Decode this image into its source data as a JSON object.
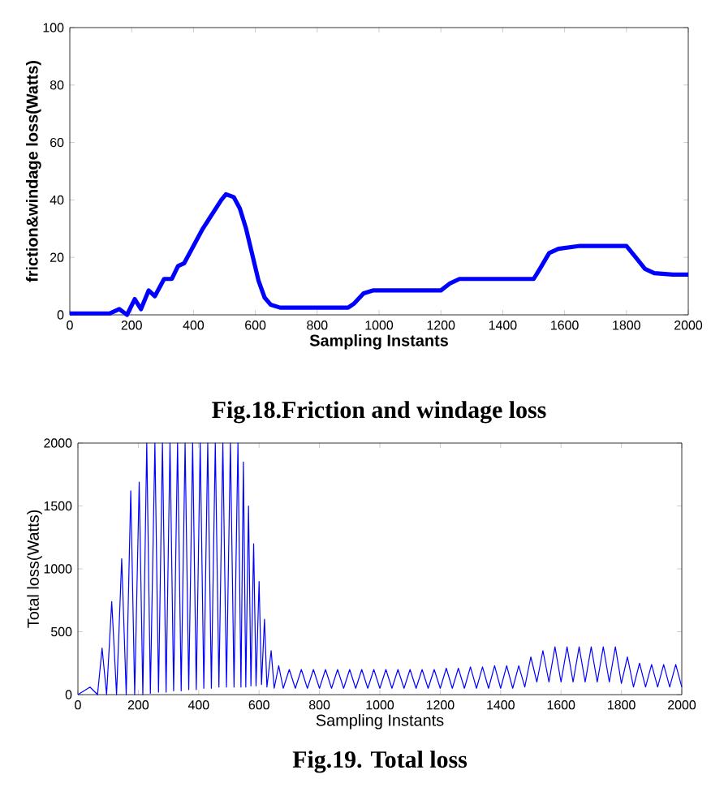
{
  "chart_data": [
    {
      "type": "line",
      "xlabel": "Sampling Instants",
      "ylabel": "friction&windage loss(Watts)",
      "annotations": [
        "Fig.18.Friction and windage loss"
      ],
      "color": "#0000ff",
      "xlim": [
        0,
        2000
      ],
      "ylim": [
        0,
        100
      ],
      "xticks": [
        0,
        200,
        400,
        600,
        800,
        1000,
        1200,
        1400,
        1600,
        1800,
        2000
      ],
      "yticks": [
        0,
        20,
        40,
        60,
        80,
        100
      ],
      "x": [
        0,
        100,
        130,
        160,
        185,
        210,
        230,
        255,
        275,
        305,
        330,
        350,
        370,
        400,
        430,
        460,
        490,
        505,
        530,
        550,
        570,
        590,
        610,
        630,
        650,
        680,
        900,
        920,
        950,
        980,
        1200,
        1230,
        1260,
        1500,
        1520,
        1550,
        1580,
        1650,
        1800,
        1830,
        1860,
        1890,
        1950,
        2000
      ],
      "values": [
        0.5,
        0.5,
        0.5,
        2,
        0,
        5.5,
        2,
        8.5,
        6.5,
        12.5,
        12.5,
        17,
        18,
        24,
        30,
        35,
        40,
        42,
        41,
        37,
        30,
        21,
        12,
        6,
        3.5,
        2.5,
        2.5,
        4,
        7.5,
        8.5,
        8.5,
        11,
        12.5,
        12.5,
        16,
        21.5,
        23,
        24,
        24,
        20,
        16,
        14.5,
        14,
        14
      ]
    },
    {
      "type": "line",
      "xlabel": "Sampling Instants",
      "ylabel": "Total loss(Watts)",
      "annotations": [
        "Fig.19. Total loss"
      ],
      "color": "#0000ff",
      "xlim": [
        0,
        2000
      ],
      "ylim": [
        0,
        2000
      ],
      "xticks": [
        0,
        200,
        400,
        600,
        800,
        1000,
        1200,
        1400,
        1600,
        1800,
        2000
      ],
      "yticks": [
        0,
        500,
        1000,
        1500,
        2000
      ],
      "x": [
        0,
        40,
        65,
        80,
        95,
        112,
        128,
        145,
        160,
        175,
        188,
        203,
        215,
        228,
        240,
        255,
        267,
        280,
        292,
        305,
        317,
        330,
        342,
        355,
        367,
        380,
        392,
        405,
        417,
        430,
        442,
        455,
        467,
        480,
        492,
        505,
        517,
        530,
        540,
        548,
        556,
        565,
        573,
        582,
        590,
        600,
        608,
        618,
        626,
        640,
        650,
        665,
        680,
        700,
        720,
        740,
        760,
        780,
        800,
        820,
        840,
        860,
        880,
        900,
        920,
        940,
        960,
        980,
        1000,
        1020,
        1040,
        1060,
        1080,
        1100,
        1120,
        1140,
        1160,
        1180,
        1200,
        1220,
        1240,
        1260,
        1280,
        1300,
        1320,
        1340,
        1360,
        1380,
        1400,
        1420,
        1440,
        1460,
        1480,
        1500,
        1520,
        1540,
        1560,
        1580,
        1600,
        1620,
        1640,
        1660,
        1680,
        1700,
        1720,
        1740,
        1760,
        1780,
        1800,
        1820,
        1840,
        1860,
        1880,
        1900,
        1920,
        1940,
        1960,
        1980,
        2000
      ],
      "values": [
        0,
        60,
        0,
        370,
        0,
        740,
        0,
        1080,
        0,
        1620,
        0,
        1690,
        0,
        2000,
        10,
        2000,
        20,
        2000,
        20,
        2000,
        30,
        2000,
        30,
        2000,
        40,
        2000,
        40,
        2000,
        50,
        2000,
        50,
        2000,
        60,
        2000,
        60,
        2000,
        60,
        2000,
        60,
        1850,
        60,
        1500,
        70,
        1200,
        70,
        900,
        80,
        600,
        60,
        350,
        50,
        230,
        50,
        200,
        50,
        200,
        50,
        200,
        50,
        200,
        50,
        200,
        50,
        200,
        50,
        200,
        50,
        200,
        50,
        200,
        50,
        200,
        50,
        200,
        50,
        200,
        50,
        200,
        50,
        210,
        50,
        210,
        50,
        220,
        50,
        220,
        50,
        230,
        50,
        230,
        50,
        230,
        60,
        300,
        100,
        350,
        100,
        380,
        100,
        380,
        100,
        380,
        100,
        380,
        100,
        380,
        100,
        380,
        90,
        300,
        60,
        250,
        60,
        240,
        60,
        240,
        60,
        240,
        60
      ]
    }
  ]
}
